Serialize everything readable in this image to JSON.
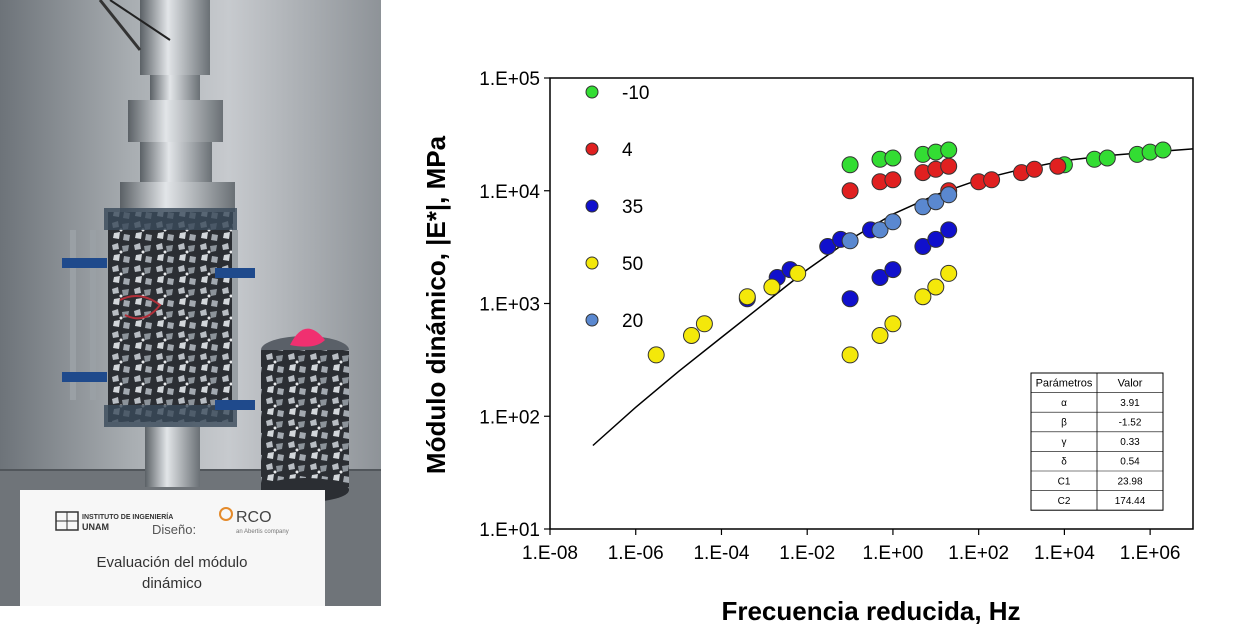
{
  "photo": {
    "card_institute": "INSTITUTO DE INGENIERÍA",
    "card_unam": "UNAM",
    "card_design_label": "Diseño:",
    "card_company": "RCO",
    "card_company_sub": "an Abertis company",
    "card_title_line1": "Evaluación del módulo",
    "card_title_line2": "dinámico"
  },
  "chart_data": {
    "type": "scatter",
    "xlabel": "Frecuencia reducida, Hz",
    "ylabel": "Módulo dinámico, |E*|, MPa",
    "x_scale": "log",
    "y_scale": "log",
    "xlim": [
      1e-08,
      10000000.0
    ],
    "ylim": [
      10,
      100000
    ],
    "x_tick_labels": [
      "1.E-08",
      "1.E-06",
      "1.E-04",
      "1.E-02",
      "1.E+00",
      "1.E+02",
      "1.E+04",
      "1.E+06"
    ],
    "y_tick_labels": [
      "1.E+01",
      "1.E+02",
      "1.E+03",
      "1.E+04",
      "1.E+05"
    ],
    "legend_position": "top-left",
    "grid": false,
    "series": [
      {
        "name": "-10",
        "color": "#33dd33",
        "points": [
          [
            0.1,
            17000
          ],
          [
            0.5,
            19000
          ],
          [
            1,
            19500
          ],
          [
            5,
            21000
          ],
          [
            10,
            22000
          ],
          [
            20,
            23000
          ],
          [
            10000,
            17000
          ],
          [
            50000,
            19000
          ],
          [
            100000,
            19500
          ],
          [
            500000,
            21000
          ],
          [
            1000000,
            22000
          ],
          [
            2000000,
            23000
          ]
        ]
      },
      {
        "name": "4",
        "color": "#e02020",
        "points": [
          [
            0.1,
            10000
          ],
          [
            0.5,
            12000
          ],
          [
            1,
            12500
          ],
          [
            5,
            14500
          ],
          [
            10,
            15500
          ],
          [
            20,
            16500
          ],
          [
            20,
            10000
          ],
          [
            100,
            12000
          ],
          [
            200,
            12500
          ],
          [
            1000,
            14500
          ],
          [
            2000,
            15500
          ],
          [
            7000,
            16500
          ]
        ]
      },
      {
        "name": "35",
        "color": "#1010cc",
        "points": [
          [
            0.1,
            1100
          ],
          [
            0.5,
            1700
          ],
          [
            1,
            2000
          ],
          [
            5,
            3200
          ],
          [
            10,
            3700
          ],
          [
            20,
            4500
          ],
          [
            0.0004,
            1100
          ],
          [
            0.002,
            1700
          ],
          [
            0.004,
            2000
          ],
          [
            0.03,
            3200
          ],
          [
            0.06,
            3700
          ],
          [
            0.3,
            4500
          ]
        ]
      },
      {
        "name": "50",
        "color": "#f4e80a",
        "points": [
          [
            0.1,
            350
          ],
          [
            0.5,
            520
          ],
          [
            1,
            660
          ],
          [
            5,
            1150
          ],
          [
            10,
            1400
          ],
          [
            20,
            1850
          ],
          [
            3e-06,
            350
          ],
          [
            2e-05,
            520
          ],
          [
            4e-05,
            660
          ],
          [
            0.0004,
            1150
          ],
          [
            0.0015,
            1400
          ],
          [
            0.006,
            1850
          ]
        ]
      },
      {
        "name": "20",
        "color": "#5a88d0",
        "points": [
          [
            0.1,
            3600
          ],
          [
            0.5,
            4500
          ],
          [
            1,
            5300
          ],
          [
            5,
            7200
          ],
          [
            10,
            8000
          ],
          [
            20,
            9200
          ]
        ]
      }
    ],
    "fit_curve": [
      [
        1e-07,
        55
      ],
      [
        1e-06,
        120
      ],
      [
        1e-05,
        250
      ],
      [
        0.0001,
        500
      ],
      [
        0.001,
        1000
      ],
      [
        0.01,
        2000
      ],
      [
        0.1,
        3700
      ],
      [
        1,
        6200
      ],
      [
        10,
        9200
      ],
      [
        100,
        12500
      ],
      [
        1000,
        15500
      ],
      [
        10000,
        18500
      ],
      [
        100000,
        20500
      ],
      [
        1000000,
        22000
      ],
      [
        10000000,
        23500
      ]
    ],
    "params_table": {
      "headers": [
        "Parámetros",
        "Valor"
      ],
      "rows": [
        [
          "α",
          "3.91"
        ],
        [
          "β",
          "-1.52"
        ],
        [
          "γ",
          "0.33"
        ],
        [
          "δ",
          "0.54"
        ],
        [
          "C1",
          "23.98"
        ],
        [
          "C2",
          "174.44"
        ]
      ]
    }
  }
}
